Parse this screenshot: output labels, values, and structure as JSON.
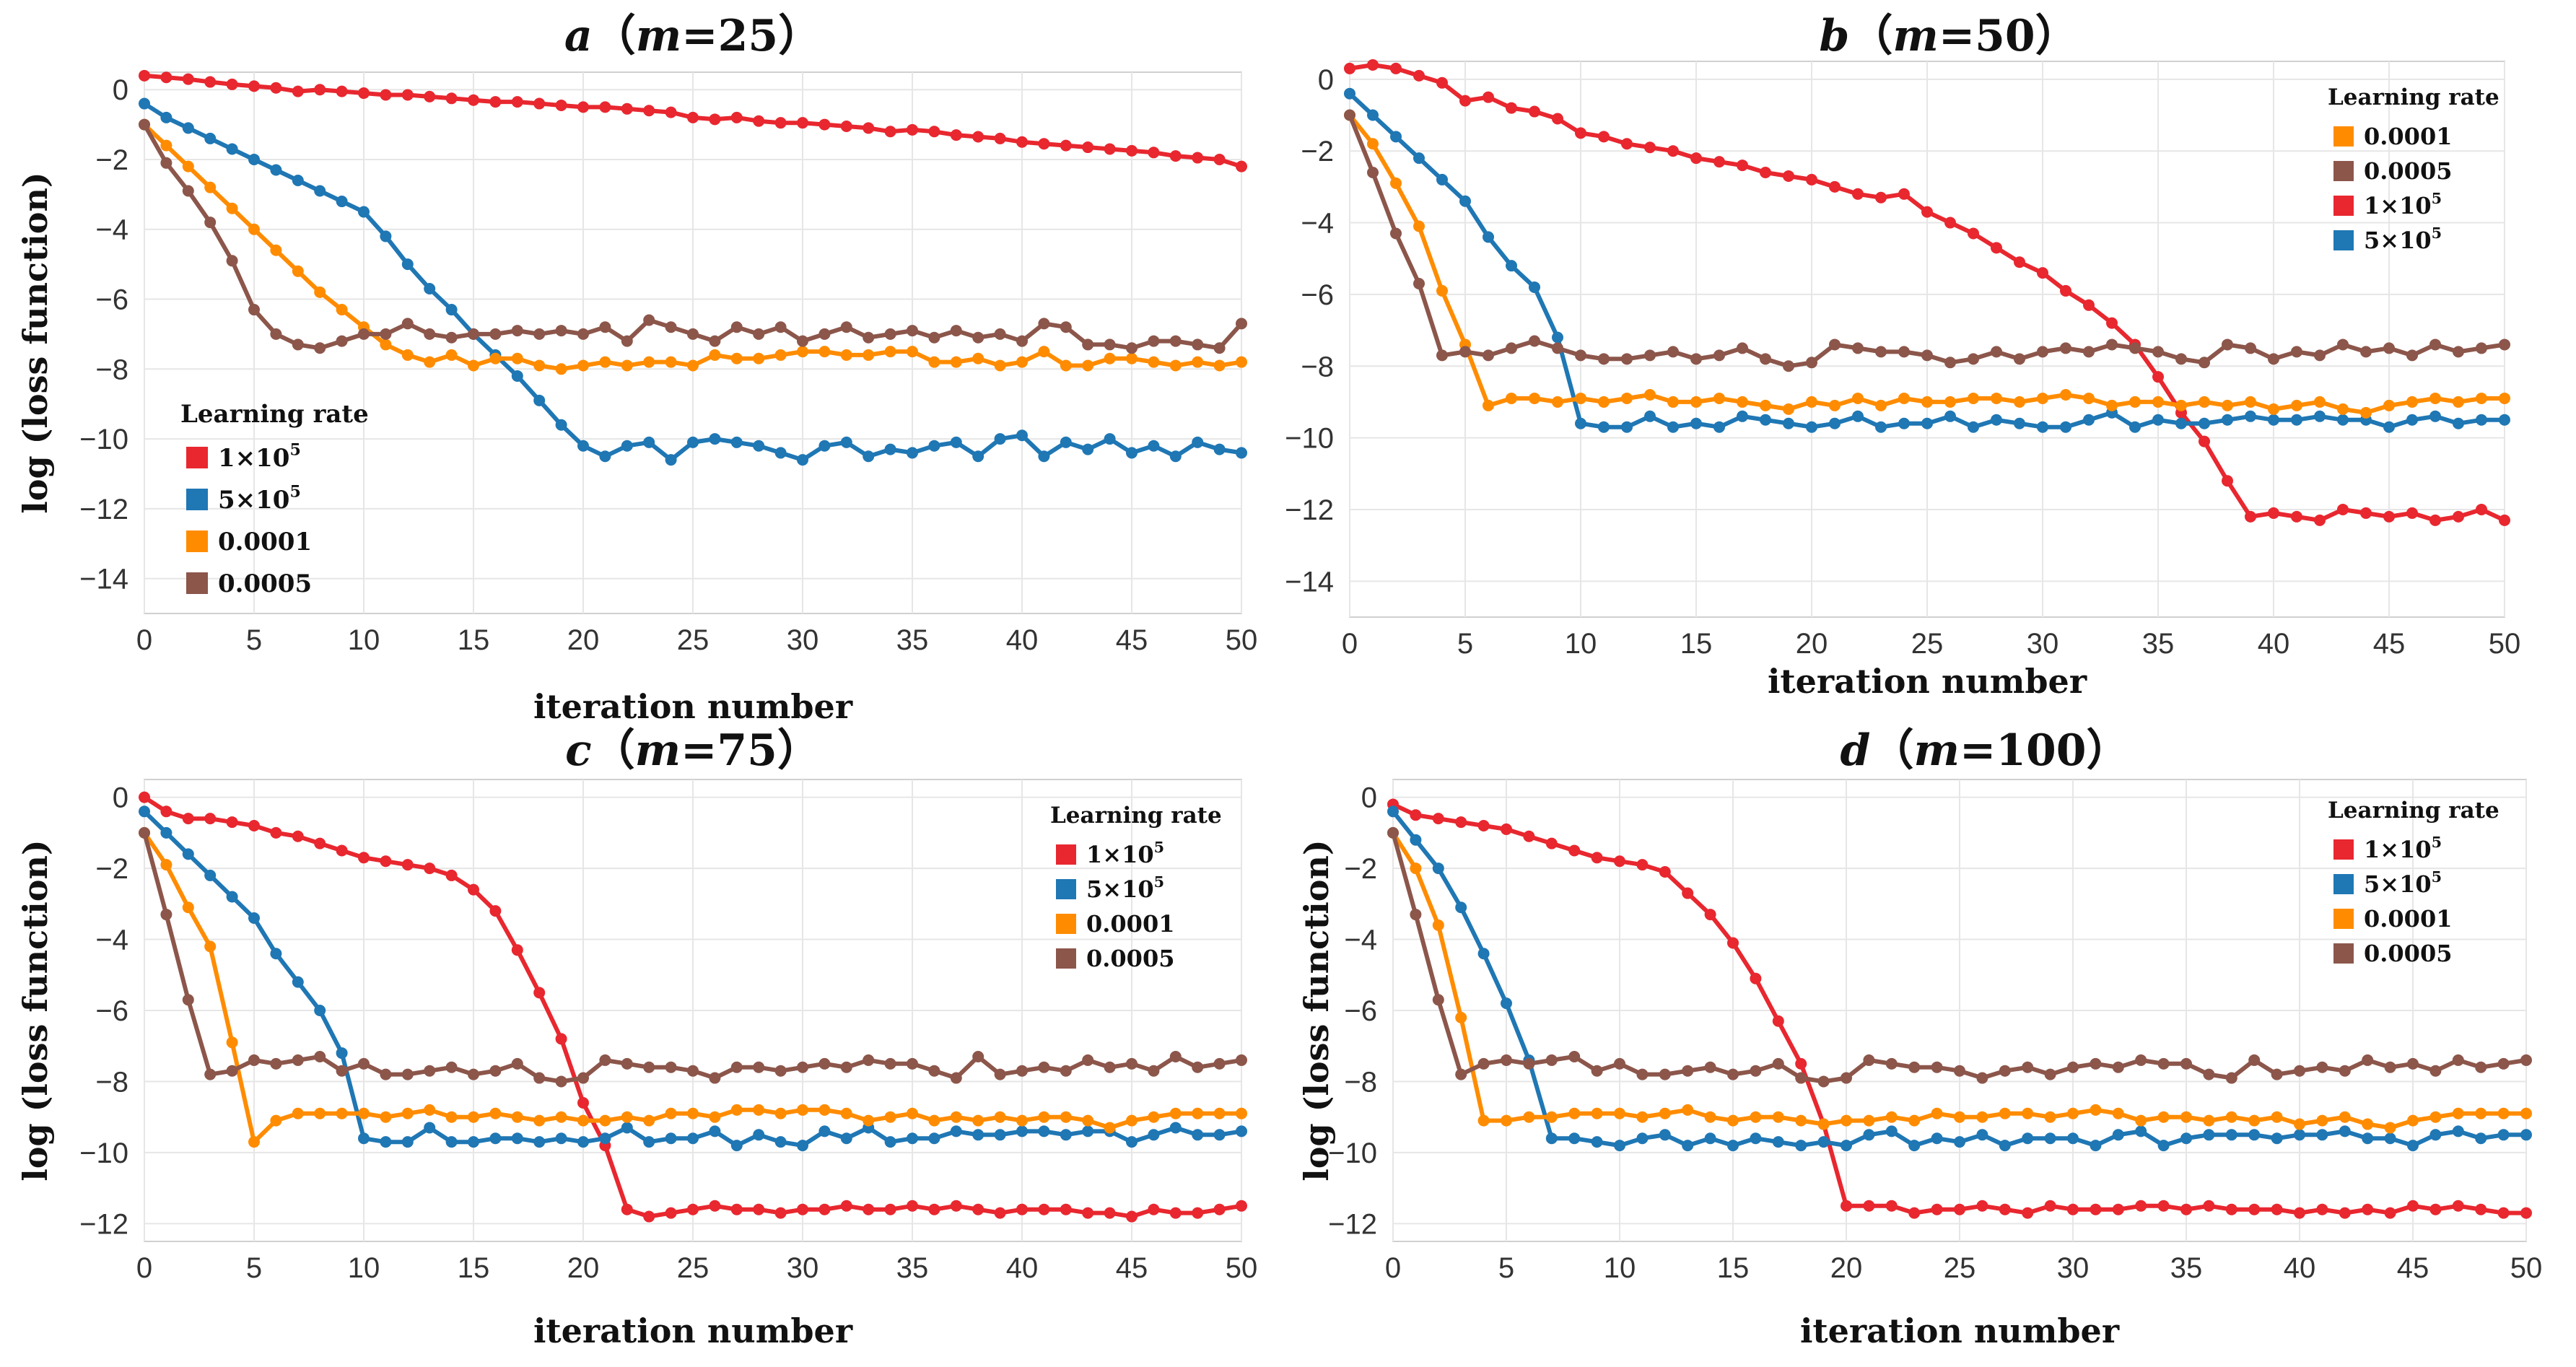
{
  "colors": {
    "1x10^5": "#e8272f",
    "5x10^5": "#1f77b4",
    "0.0001": "#ff8c00",
    "0.0005": "#8c564b",
    "grid": "#e6e6e6",
    "frame": "#d0d0d0"
  },
  "legend_labels": {
    "1x10^5": "1×10",
    "5x10^5": "5×10",
    "0.0001": "0.0001",
    "0.0005": "0.0005"
  },
  "legend_exponent": "5",
  "chart_data": [
    {
      "type": "line",
      "title_letter": "a",
      "title_open": "（",
      "title_var": "m",
      "title_rest": "=25）",
      "xlabel": "iteration number",
      "ylabel": "log (loss function)",
      "xlim": [
        0,
        50
      ],
      "ylim": [
        -15,
        0.5
      ],
      "xticks": [
        0,
        5,
        10,
        15,
        20,
        25,
        30,
        35,
        40,
        45,
        50
      ],
      "yticks": [
        0,
        -2,
        -4,
        -6,
        -8,
        -10,
        -12,
        -14
      ],
      "legend_title": "Learning rate",
      "legend_placement": "bottom-left",
      "legend_order": [
        "1x10^5",
        "5x10^5",
        "0.0001",
        "0.0005"
      ],
      "series": [
        {
          "key": "1x10^5",
          "values": [
            0.4,
            0.35,
            0.3,
            0.22,
            0.15,
            0.1,
            0.05,
            -0.05,
            0.0,
            -0.05,
            -0.1,
            -0.15,
            -0.15,
            -0.2,
            -0.25,
            -0.3,
            -0.35,
            -0.35,
            -0.4,
            -0.45,
            -0.5,
            -0.5,
            -0.55,
            -0.6,
            -0.65,
            -0.8,
            -0.85,
            -0.8,
            -0.9,
            -0.95,
            -0.95,
            -1.0,
            -1.05,
            -1.1,
            -1.2,
            -1.15,
            -1.2,
            -1.3,
            -1.35,
            -1.4,
            -1.5,
            -1.55,
            -1.6,
            -1.65,
            -1.7,
            -1.75,
            -1.8,
            -1.9,
            -1.95,
            -2.0,
            -2.2
          ]
        },
        {
          "key": "5x10^5",
          "values": [
            -0.4,
            -0.8,
            -1.1,
            -1.4,
            -1.7,
            -2.0,
            -2.3,
            -2.6,
            -2.9,
            -3.2,
            -3.5,
            -4.2,
            -5.0,
            -5.7,
            -6.3,
            -7.0,
            -7.6,
            -8.2,
            -8.9,
            -9.6,
            -10.2,
            -10.5,
            -10.2,
            -10.1,
            -10.6,
            -10.1,
            -10.0,
            -10.1,
            -10.2,
            -10.4,
            -10.6,
            -10.2,
            -10.1,
            -10.5,
            -10.3,
            -10.4,
            -10.2,
            -10.1,
            -10.5,
            -10.0,
            -9.9,
            -10.5,
            -10.1,
            -10.3,
            -10.0,
            -10.4,
            -10.2,
            -10.5,
            -10.1,
            -10.3,
            -10.4
          ]
        },
        {
          "key": "0.0001",
          "values": [
            -1.0,
            -1.6,
            -2.2,
            -2.8,
            -3.4,
            -4.0,
            -4.6,
            -5.2,
            -5.8,
            -6.3,
            -6.8,
            -7.3,
            -7.6,
            -7.8,
            -7.6,
            -7.9,
            -7.7,
            -7.7,
            -7.9,
            -8.0,
            -7.9,
            -7.8,
            -7.9,
            -7.8,
            -7.8,
            -7.9,
            -7.6,
            -7.7,
            -7.7,
            -7.6,
            -7.5,
            -7.5,
            -7.6,
            -7.6,
            -7.5,
            -7.5,
            -7.8,
            -7.8,
            -7.7,
            -7.9,
            -7.8,
            -7.5,
            -7.9,
            -7.9,
            -7.7,
            -7.7,
            -7.8,
            -7.9,
            -7.8,
            -7.9,
            -7.8
          ]
        },
        {
          "key": "0.0005",
          "values": [
            -1.0,
            -2.1,
            -2.9,
            -3.8,
            -4.9,
            -6.3,
            -7.0,
            -7.3,
            -7.4,
            -7.2,
            -7.0,
            -7.0,
            -6.7,
            -7.0,
            -7.1,
            -7.0,
            -7.0,
            -6.9,
            -7.0,
            -6.9,
            -7.0,
            -6.8,
            -7.2,
            -6.6,
            -6.8,
            -7.0,
            -7.2,
            -6.8,
            -7.0,
            -6.8,
            -7.2,
            -7.0,
            -6.8,
            -7.1,
            -7.0,
            -6.9,
            -7.1,
            -6.9,
            -7.1,
            -7.0,
            -7.2,
            -6.7,
            -6.8,
            -7.3,
            -7.3,
            -7.4,
            -7.2,
            -7.2,
            -7.3,
            -7.4,
            -6.7
          ]
        }
      ]
    },
    {
      "type": "line",
      "title_letter": "b",
      "title_open": "（",
      "title_var": "m",
      "title_rest": "=50）",
      "xlabel": "iteration number",
      "ylabel": "",
      "xlim": [
        0,
        50
      ],
      "ylim": [
        -15,
        0.5
      ],
      "xticks": [
        0,
        5,
        10,
        15,
        20,
        25,
        30,
        35,
        40,
        45,
        50
      ],
      "yticks": [
        0,
        -2,
        -4,
        -6,
        -8,
        -10,
        -12,
        -14
      ],
      "legend_title": "Learning rate",
      "legend_placement": "top-right",
      "legend_order": [
        "0.0001",
        "0.0005",
        "1x10^5",
        "5x10^5"
      ],
      "series": [
        {
          "key": "1x10^5",
          "values": [
            0.3,
            0.4,
            0.3,
            0.1,
            -0.1,
            -0.6,
            -0.5,
            -0.8,
            -0.9,
            -1.1,
            -1.5,
            -1.6,
            -1.8,
            -1.9,
            -2.0,
            -2.2,
            -2.3,
            -2.4,
            -2.6,
            -2.7,
            -2.8,
            -3.0,
            -3.2,
            -3.3,
            -3.2,
            -3.7,
            -4.0,
            -4.3,
            -4.7,
            -5.1,
            -5.4,
            -5.9,
            -6.3,
            -6.8,
            -7.4,
            -8.3,
            -9.3,
            -10.1,
            -11.2,
            -12.2,
            -12.1,
            -12.2,
            -12.3,
            -12.0,
            -12.1,
            -12.2,
            -12.1,
            -12.3,
            -12.2,
            -12.0,
            -12.3
          ]
        },
        {
          "key": "5x10^5",
          "values": [
            -0.4,
            -1.0,
            -1.6,
            -2.2,
            -2.8,
            -3.4,
            -4.4,
            -5.2,
            -5.8,
            -7.2,
            -9.6,
            -9.7,
            -9.7,
            -9.4,
            -9.7,
            -9.6,
            -9.7,
            -9.4,
            -9.5,
            -9.6,
            -9.7,
            -9.6,
            -9.4,
            -9.7,
            -9.6,
            -9.6,
            -9.4,
            -9.7,
            -9.5,
            -9.6,
            -9.7,
            -9.7,
            -9.5,
            -9.3,
            -9.7,
            -9.5,
            -9.6,
            -9.6,
            -9.5,
            -9.4,
            -9.5,
            -9.5,
            -9.4,
            -9.5,
            -9.5,
            -9.7,
            -9.5,
            -9.4,
            -9.6,
            -9.5,
            -9.5
          ]
        },
        {
          "key": "0.0001",
          "values": [
            -1.0,
            -1.8,
            -2.9,
            -4.1,
            -5.9,
            -7.4,
            -9.1,
            -8.9,
            -8.9,
            -9.0,
            -8.9,
            -9.0,
            -8.9,
            -8.8,
            -9.0,
            -9.0,
            -8.9,
            -9.0,
            -9.1,
            -9.2,
            -9.0,
            -9.1,
            -8.9,
            -9.1,
            -8.9,
            -9.0,
            -9.0,
            -8.9,
            -8.9,
            -9.0,
            -8.9,
            -8.8,
            -8.9,
            -9.1,
            -9.0,
            -9.0,
            -9.1,
            -9.0,
            -9.1,
            -9.0,
            -9.2,
            -9.1,
            -9.0,
            -9.2,
            -9.3,
            -9.1,
            -9.0,
            -8.9,
            -9.0,
            -8.9,
            -8.9
          ]
        },
        {
          "key": "0.0005",
          "values": [
            -1.0,
            -2.6,
            -4.3,
            -5.7,
            -7.7,
            -7.6,
            -7.7,
            -7.5,
            -7.3,
            -7.5,
            -7.7,
            -7.8,
            -7.8,
            -7.7,
            -7.6,
            -7.8,
            -7.7,
            -7.5,
            -7.8,
            -8.0,
            -7.9,
            -7.4,
            -7.5,
            -7.6,
            -7.6,
            -7.7,
            -7.9,
            -7.8,
            -7.6,
            -7.8,
            -7.6,
            -7.5,
            -7.6,
            -7.4,
            -7.5,
            -7.6,
            -7.8,
            -7.9,
            -7.4,
            -7.5,
            -7.8,
            -7.6,
            -7.7,
            -7.4,
            -7.6,
            -7.5,
            -7.7,
            -7.4,
            -7.6,
            -7.5,
            -7.4
          ]
        }
      ]
    },
    {
      "type": "line",
      "title_letter": "c",
      "title_open": "（",
      "title_var": "m",
      "title_rest": "=75）",
      "xlabel": "iteration number",
      "ylabel": "log (loss function)",
      "xlim": [
        0,
        50
      ],
      "ylim": [
        -12.5,
        0.5
      ],
      "xticks": [
        0,
        5,
        10,
        15,
        20,
        25,
        30,
        35,
        40,
        45,
        50
      ],
      "yticks": [
        0,
        -2,
        -4,
        -6,
        -8,
        -10,
        -12
      ],
      "legend_title": "Learning rate",
      "legend_placement": "top-right",
      "legend_order": [
        "1x10^5",
        "5x10^5",
        "0.0001",
        "0.0005"
      ],
      "series": [
        {
          "key": "1x10^5",
          "values": [
            0.0,
            -0.4,
            -0.6,
            -0.6,
            -0.7,
            -0.8,
            -1.0,
            -1.1,
            -1.3,
            -1.5,
            -1.7,
            -1.8,
            -1.9,
            -2.0,
            -2.2,
            -2.6,
            -3.2,
            -4.3,
            -5.5,
            -6.8,
            -8.6,
            -9.8,
            -11.6,
            -11.8,
            -11.7,
            -11.6,
            -11.5,
            -11.6,
            -11.6,
            -11.7,
            -11.6,
            -11.6,
            -11.5,
            -11.6,
            -11.6,
            -11.5,
            -11.6,
            -11.5,
            -11.6,
            -11.7,
            -11.6,
            -11.6,
            -11.6,
            -11.7,
            -11.7,
            -11.8,
            -11.6,
            -11.7,
            -11.7,
            -11.6,
            -11.5
          ]
        },
        {
          "key": "5x10^5",
          "values": [
            -0.4,
            -1.0,
            -1.6,
            -2.2,
            -2.8,
            -3.4,
            -4.4,
            -5.2,
            -6.0,
            -7.2,
            -9.6,
            -9.7,
            -9.7,
            -9.3,
            -9.7,
            -9.7,
            -9.6,
            -9.6,
            -9.7,
            -9.6,
            -9.7,
            -9.6,
            -9.3,
            -9.7,
            -9.6,
            -9.6,
            -9.4,
            -9.8,
            -9.5,
            -9.7,
            -9.8,
            -9.4,
            -9.6,
            -9.3,
            -9.7,
            -9.6,
            -9.6,
            -9.4,
            -9.5,
            -9.5,
            -9.4,
            -9.4,
            -9.5,
            -9.4,
            -9.4,
            -9.7,
            -9.5,
            -9.3,
            -9.5,
            -9.5,
            -9.4
          ]
        },
        {
          "key": "0.0001",
          "values": [
            -1.0,
            -1.9,
            -3.1,
            -4.2,
            -6.9,
            -9.7,
            -9.1,
            -8.9,
            -8.9,
            -8.9,
            -8.9,
            -9.0,
            -8.9,
            -8.8,
            -9.0,
            -9.0,
            -8.9,
            -9.0,
            -9.1,
            -9.0,
            -9.1,
            -9.1,
            -9.0,
            -9.1,
            -8.9,
            -8.9,
            -9.0,
            -8.8,
            -8.8,
            -8.9,
            -8.8,
            -8.8,
            -8.9,
            -9.1,
            -9.0,
            -8.9,
            -9.1,
            -9.0,
            -9.1,
            -9.0,
            -9.1,
            -9.0,
            -9.0,
            -9.1,
            -9.3,
            -9.1,
            -9.0,
            -8.9,
            -8.9,
            -8.9,
            -8.9
          ]
        },
        {
          "key": "0.0005",
          "values": [
            -1.0,
            -3.3,
            -5.7,
            -7.8,
            -7.7,
            -7.4,
            -7.5,
            -7.4,
            -7.3,
            -7.7,
            -7.5,
            -7.8,
            -7.8,
            -7.7,
            -7.6,
            -7.8,
            -7.7,
            -7.5,
            -7.9,
            -8.0,
            -7.9,
            -7.4,
            -7.5,
            -7.6,
            -7.6,
            -7.7,
            -7.9,
            -7.6,
            -7.6,
            -7.7,
            -7.6,
            -7.5,
            -7.6,
            -7.4,
            -7.5,
            -7.5,
            -7.7,
            -7.9,
            -7.3,
            -7.8,
            -7.7,
            -7.6,
            -7.7,
            -7.4,
            -7.6,
            -7.5,
            -7.7,
            -7.3,
            -7.6,
            -7.5,
            -7.4
          ]
        }
      ]
    },
    {
      "type": "line",
      "title_letter": "d",
      "title_open": "（",
      "title_var": "m",
      "title_rest": "=100）",
      "xlabel": "iteration number",
      "ylabel": "log (loss function)",
      "xlim": [
        0,
        50
      ],
      "ylim": [
        -12.5,
        0.5
      ],
      "xticks": [
        0,
        5,
        10,
        15,
        20,
        25,
        30,
        35,
        40,
        45,
        50
      ],
      "yticks": [
        0,
        -2,
        -4,
        -6,
        -8,
        -10,
        -12
      ],
      "legend_title": "Learning rate",
      "legend_placement": "top-right",
      "legend_order": [
        "1x10^5",
        "5x10^5",
        "0.0001",
        "0.0005"
      ],
      "series": [
        {
          "key": "1x10^5",
          "values": [
            -0.2,
            -0.5,
            -0.6,
            -0.7,
            -0.8,
            -0.9,
            -1.1,
            -1.3,
            -1.5,
            -1.7,
            -1.8,
            -1.9,
            -2.1,
            -2.7,
            -3.3,
            -4.1,
            -5.1,
            -6.3,
            -7.5,
            -9.2,
            -11.5,
            -11.5,
            -11.5,
            -11.7,
            -11.6,
            -11.6,
            -11.5,
            -11.6,
            -11.7,
            -11.5,
            -11.6,
            -11.6,
            -11.6,
            -11.5,
            -11.5,
            -11.6,
            -11.5,
            -11.6,
            -11.6,
            -11.6,
            -11.7,
            -11.6,
            -11.7,
            -11.6,
            -11.7,
            -11.5,
            -11.6,
            -11.5,
            -11.6,
            -11.7,
            -11.7
          ]
        },
        {
          "key": "5x10^5",
          "values": [
            -0.4,
            -1.2,
            -2.0,
            -3.1,
            -4.4,
            -5.8,
            -7.4,
            -9.6,
            -9.6,
            -9.7,
            -9.8,
            -9.6,
            -9.5,
            -9.8,
            -9.6,
            -9.8,
            -9.6,
            -9.7,
            -9.8,
            -9.7,
            -9.8,
            -9.5,
            -9.4,
            -9.8,
            -9.6,
            -9.7,
            -9.5,
            -9.8,
            -9.6,
            -9.6,
            -9.6,
            -9.8,
            -9.5,
            -9.4,
            -9.8,
            -9.6,
            -9.5,
            -9.5,
            -9.5,
            -9.6,
            -9.5,
            -9.5,
            -9.4,
            -9.6,
            -9.6,
            -9.8,
            -9.5,
            -9.4,
            -9.6,
            -9.5,
            -9.5
          ]
        },
        {
          "key": "0.0001",
          "values": [
            -1.0,
            -2.0,
            -3.6,
            -6.2,
            -9.1,
            -9.1,
            -9.0,
            -9.0,
            -8.9,
            -8.9,
            -8.9,
            -9.0,
            -8.9,
            -8.8,
            -9.0,
            -9.1,
            -9.0,
            -9.0,
            -9.1,
            -9.2,
            -9.1,
            -9.1,
            -9.0,
            -9.1,
            -8.9,
            -9.0,
            -9.0,
            -8.9,
            -8.9,
            -9.0,
            -8.9,
            -8.8,
            -8.9,
            -9.1,
            -9.0,
            -9.0,
            -9.1,
            -9.0,
            -9.1,
            -9.0,
            -9.2,
            -9.1,
            -9.0,
            -9.2,
            -9.3,
            -9.1,
            -9.0,
            -8.9,
            -8.9,
            -8.9,
            -8.9
          ]
        },
        {
          "key": "0.0005",
          "values": [
            -1.0,
            -3.3,
            -5.7,
            -7.8,
            -7.5,
            -7.4,
            -7.5,
            -7.4,
            -7.3,
            -7.7,
            -7.5,
            -7.8,
            -7.8,
            -7.7,
            -7.6,
            -7.8,
            -7.7,
            -7.5,
            -7.9,
            -8.0,
            -7.9,
            -7.4,
            -7.5,
            -7.6,
            -7.6,
            -7.7,
            -7.9,
            -7.7,
            -7.6,
            -7.8,
            -7.6,
            -7.5,
            -7.6,
            -7.4,
            -7.5,
            -7.5,
            -7.8,
            -7.9,
            -7.4,
            -7.8,
            -7.7,
            -7.6,
            -7.7,
            -7.4,
            -7.6,
            -7.5,
            -7.7,
            -7.4,
            -7.6,
            -7.5,
            -7.4
          ]
        }
      ]
    }
  ]
}
